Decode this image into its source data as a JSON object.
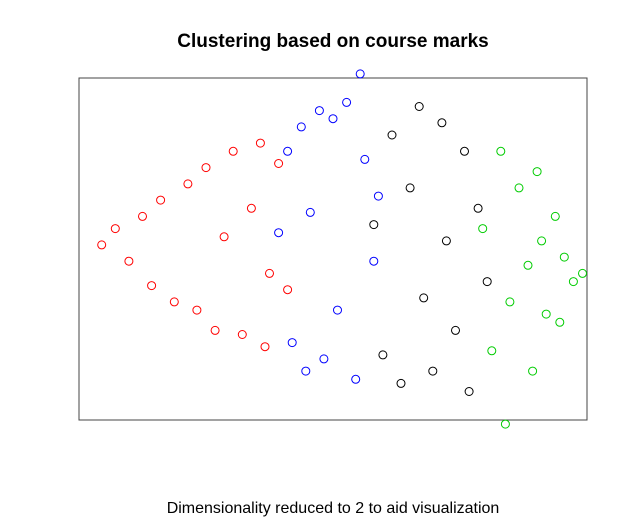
{
  "chart_data": {
    "type": "scatter",
    "title": "Clustering based on course marks",
    "xlabel": "Dimensionality reduced to 2 to aid visualization",
    "ylabel": "",
    "axes_shown": false,
    "grid": false,
    "legend": "none",
    "marker": "open-circle",
    "xlim": [
      -5.6,
      5.6
    ],
    "ylim": [
      -4.2,
      4.2
    ],
    "series": [
      {
        "color": "#ff0000",
        "points": [
          [
            -5.1,
            0.1
          ],
          [
            -4.8,
            0.5
          ],
          [
            -4.5,
            -0.3
          ],
          [
            -4.2,
            0.8
          ],
          [
            -4.0,
            -0.9
          ],
          [
            -3.8,
            1.2
          ],
          [
            -3.5,
            -1.3
          ],
          [
            -3.2,
            1.6
          ],
          [
            -3.0,
            -1.5
          ],
          [
            -2.8,
            2.0
          ],
          [
            -2.6,
            -2.0
          ],
          [
            -2.4,
            0.3
          ],
          [
            -2.2,
            2.4
          ],
          [
            -2.0,
            -2.1
          ],
          [
            -1.8,
            1.0
          ],
          [
            -1.6,
            2.6
          ],
          [
            -1.5,
            -2.4
          ],
          [
            -1.4,
            -0.6
          ],
          [
            -1.2,
            2.1
          ],
          [
            -1.0,
            -1.0
          ]
        ]
      },
      {
        "color": "#0000ff",
        "points": [
          [
            -1.2,
            0.4
          ],
          [
            -1.0,
            2.4
          ],
          [
            -0.9,
            -2.3
          ],
          [
            -0.7,
            3.0
          ],
          [
            -0.6,
            -3.0
          ],
          [
            -0.5,
            0.9
          ],
          [
            -0.3,
            3.4
          ],
          [
            -0.2,
            -2.7
          ],
          [
            0.0,
            3.2
          ],
          [
            0.1,
            -1.5
          ],
          [
            0.3,
            3.6
          ],
          [
            0.5,
            -3.2
          ],
          [
            0.7,
            2.2
          ],
          [
            0.9,
            -0.3
          ],
          [
            0.6,
            4.3
          ],
          [
            1.0,
            1.3
          ]
        ]
      },
      {
        "color": "#000000",
        "points": [
          [
            0.9,
            0.6
          ],
          [
            1.1,
            -2.6
          ],
          [
            1.3,
            2.8
          ],
          [
            1.5,
            -3.3
          ],
          [
            1.7,
            1.5
          ],
          [
            1.9,
            3.5
          ],
          [
            2.0,
            -1.2
          ],
          [
            2.2,
            -3.0
          ],
          [
            2.4,
            3.1
          ],
          [
            2.5,
            0.2
          ],
          [
            2.7,
            -2.0
          ],
          [
            2.9,
            2.4
          ],
          [
            3.0,
            -3.5
          ],
          [
            3.2,
            1.0
          ],
          [
            3.4,
            -0.8
          ]
        ]
      },
      {
        "color": "#00cc00",
        "points": [
          [
            3.3,
            0.5
          ],
          [
            3.5,
            -2.5
          ],
          [
            3.7,
            2.4
          ],
          [
            3.9,
            -1.3
          ],
          [
            4.1,
            1.5
          ],
          [
            4.3,
            -0.4
          ],
          [
            4.5,
            1.9
          ],
          [
            4.7,
            -1.6
          ],
          [
            4.9,
            0.8
          ],
          [
            5.1,
            -0.2
          ],
          [
            5.3,
            -0.8
          ],
          [
            4.4,
            -3.0
          ],
          [
            5.0,
            -1.8
          ],
          [
            3.8,
            -4.3
          ],
          [
            4.6,
            0.2
          ],
          [
            5.5,
            -0.6
          ]
        ]
      }
    ]
  }
}
